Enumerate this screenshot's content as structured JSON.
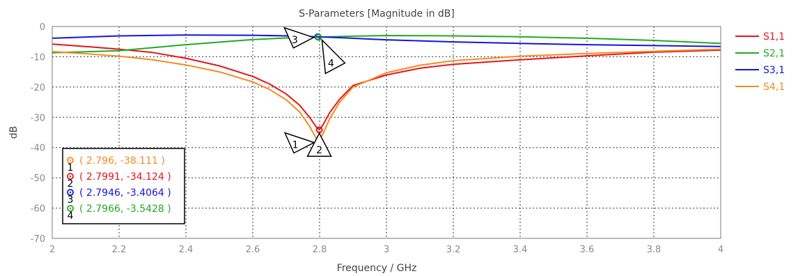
{
  "chart_data": {
    "type": "line",
    "title": "S-Parameters [Magnitude in dB]",
    "xlabel": "Frequency / GHz",
    "ylabel": "dB",
    "xlim": [
      2,
      4
    ],
    "ylim": [
      -70,
      0
    ],
    "xticks": [
      "2",
      "2.2",
      "2.4",
      "2.6",
      "2.8",
      "3",
      "3.2",
      "3.4",
      "3.6",
      "3.8",
      "4"
    ],
    "yticks": [
      "0",
      "-10",
      "-20",
      "-30",
      "-40",
      "-50",
      "-60",
      "-70"
    ],
    "grid": true,
    "legend_position": "right",
    "series": [
      {
        "name": "S1,1",
        "color": "#e8141c",
        "x": [
          2.0,
          2.1,
          2.2,
          2.3,
          2.4,
          2.5,
          2.6,
          2.65,
          2.7,
          2.74,
          2.77,
          2.79,
          2.7991,
          2.81,
          2.83,
          2.86,
          2.9,
          3.0,
          3.1,
          3.2,
          3.4,
          3.6,
          3.8,
          4.0
        ],
        "y": [
          -5.8,
          -6.6,
          -7.5,
          -8.6,
          -10.5,
          -13.0,
          -16.5,
          -19.0,
          -22.3,
          -26.0,
          -30.0,
          -33.2,
          -34.1,
          -32.5,
          -28.5,
          -24.0,
          -19.5,
          -16.0,
          -13.8,
          -12.5,
          -11.0,
          -9.7,
          -8.5,
          -7.8
        ]
      },
      {
        "name": "S2,1",
        "color": "#22aa22",
        "x": [
          2.0,
          2.2,
          2.4,
          2.6,
          2.7,
          2.7966,
          2.9,
          3.0,
          3.2,
          3.4,
          3.6,
          3.8,
          4.0
        ],
        "y": [
          -8.7,
          -8.0,
          -6.0,
          -4.3,
          -3.8,
          -3.5,
          -3.2,
          -3.0,
          -3.1,
          -3.4,
          -3.9,
          -4.6,
          -5.6
        ]
      },
      {
        "name": "S3,1",
        "color": "#1414dc",
        "x": [
          2.0,
          2.2,
          2.4,
          2.6,
          2.7,
          2.7946,
          2.9,
          3.0,
          3.2,
          3.4,
          3.6,
          3.8,
          4.0
        ],
        "y": [
          -3.9,
          -3.1,
          -2.8,
          -2.9,
          -3.1,
          -3.4,
          -3.9,
          -4.4,
          -5.1,
          -5.6,
          -6.0,
          -6.3,
          -6.6
        ]
      },
      {
        "name": "S4,1",
        "color": "#f28c1e",
        "x": [
          2.0,
          2.1,
          2.2,
          2.3,
          2.4,
          2.5,
          2.6,
          2.65,
          2.7,
          2.74,
          2.77,
          2.785,
          2.796,
          2.81,
          2.83,
          2.86,
          2.9,
          3.0,
          3.1,
          3.2,
          3.4,
          3.6,
          3.8,
          4.0
        ],
        "y": [
          -8.3,
          -9.0,
          -9.8,
          -11.0,
          -12.7,
          -15.0,
          -18.3,
          -20.8,
          -24.2,
          -28.2,
          -33.0,
          -36.0,
          -38.1,
          -35.5,
          -30.5,
          -25.0,
          -20.0,
          -15.3,
          -12.8,
          -11.3,
          -9.8,
          -8.9,
          -8.2,
          -7.5
        ]
      }
    ],
    "markers": [
      {
        "id": "1",
        "x": 2.796,
        "y": -38.111,
        "color": "#f28c1e",
        "readout": "( 2.796, -38.111 )",
        "pointer": "left"
      },
      {
        "id": "2",
        "x": 2.7991,
        "y": -34.124,
        "color": "#e8141c",
        "readout": "( 2.7991, -34.124 )",
        "pointer": "below"
      },
      {
        "id": "3",
        "x": 2.7946,
        "y": -3.4064,
        "color": "#1414dc",
        "readout": "( 2.7946, -3.4064 )",
        "pointer": "left"
      },
      {
        "id": "4",
        "x": 2.7966,
        "y": -3.5428,
        "color": "#22aa22",
        "readout": "( 2.7966, -3.5428 )",
        "pointer": "right"
      }
    ]
  }
}
